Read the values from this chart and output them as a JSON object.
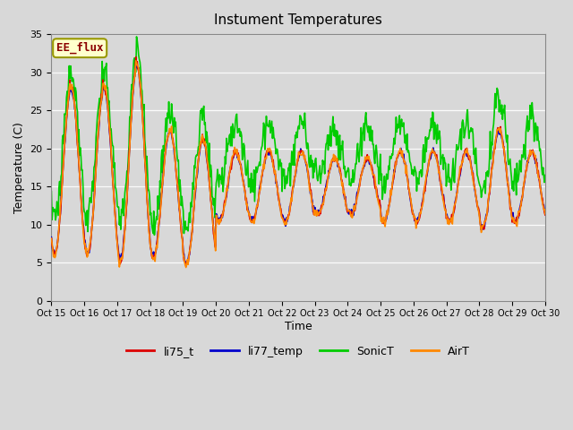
{
  "title": "Instument Temperatures",
  "xlabel": "Time",
  "ylabel": "Temperature (C)",
  "ylim": [
    0,
    35
  ],
  "background_color": "#d8d8d8",
  "annotation_text": "EE_flux",
  "annotation_color": "#8b0000",
  "annotation_bg": "#ffffcc",
  "annotation_border": "#999900",
  "tick_labels": [
    "Oct 15",
    "Oct 16",
    "Oct 17",
    "Oct 18",
    "Oct 19",
    "Oct 20",
    "Oct 21",
    "Oct 22",
    "Oct 23",
    "Oct 24",
    "Oct 25",
    "Oct 26",
    "Oct 27",
    "Oct 28",
    "Oct 29",
    "Oct 30"
  ],
  "line_colors": {
    "li75_t": "#dd0000",
    "li77_temp": "#0000cc",
    "SonicT": "#00cc00",
    "AirT": "#ff8800"
  },
  "line_widths": {
    "li75_t": 1.2,
    "li77_temp": 1.2,
    "SonicT": 1.2,
    "AirT": 1.2
  },
  "legend_entries": [
    "li75_t",
    "li77_temp",
    "SonicT",
    "AirT"
  ]
}
